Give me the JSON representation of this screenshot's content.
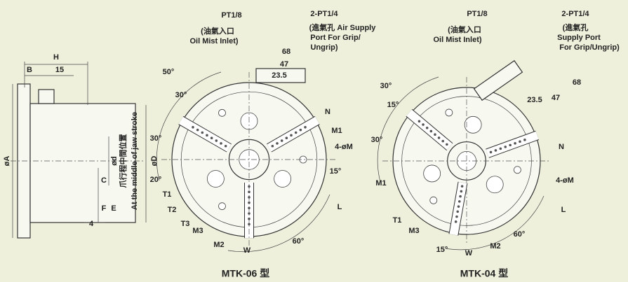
{
  "side_view": {
    "labels": [
      "H",
      "B",
      "15",
      "øA",
      "ød",
      "øD",
      "C",
      "F",
      "E",
      "4",
      "爪行程中間位置",
      "At the middle of jaw stroke"
    ]
  },
  "chucks": [
    {
      "model": "MTK-06 型",
      "labels": [
        "PT1/8",
        "(油氣入口",
        "Oil Mist Inlet)",
        "2-PT1/4",
        "(進氣孔 Air Supply",
        "Port For Grip/",
        "Ungrip)",
        "68",
        "47",
        "23.5",
        "50°",
        "30°",
        "30°",
        "20°",
        "N",
        "M1",
        "4-øM",
        "15°",
        "T1",
        "T2",
        "T3",
        "M3",
        "M2",
        "W",
        "60°",
        "L"
      ]
    },
    {
      "model": "MTK-04 型",
      "labels": [
        "PT1/8",
        "(油氣入口",
        "Oil Mist Inlet)",
        "2-PT1/4",
        "(進氣孔",
        "Supply Port",
        "For Grip/Ungrip)",
        "68",
        "47",
        "23.5",
        "30°",
        "15°",
        "30°",
        "N",
        "M1",
        "4-øM",
        "T1",
        "M3",
        "W",
        "M2",
        "15°",
        "60°",
        "L"
      ]
    }
  ]
}
